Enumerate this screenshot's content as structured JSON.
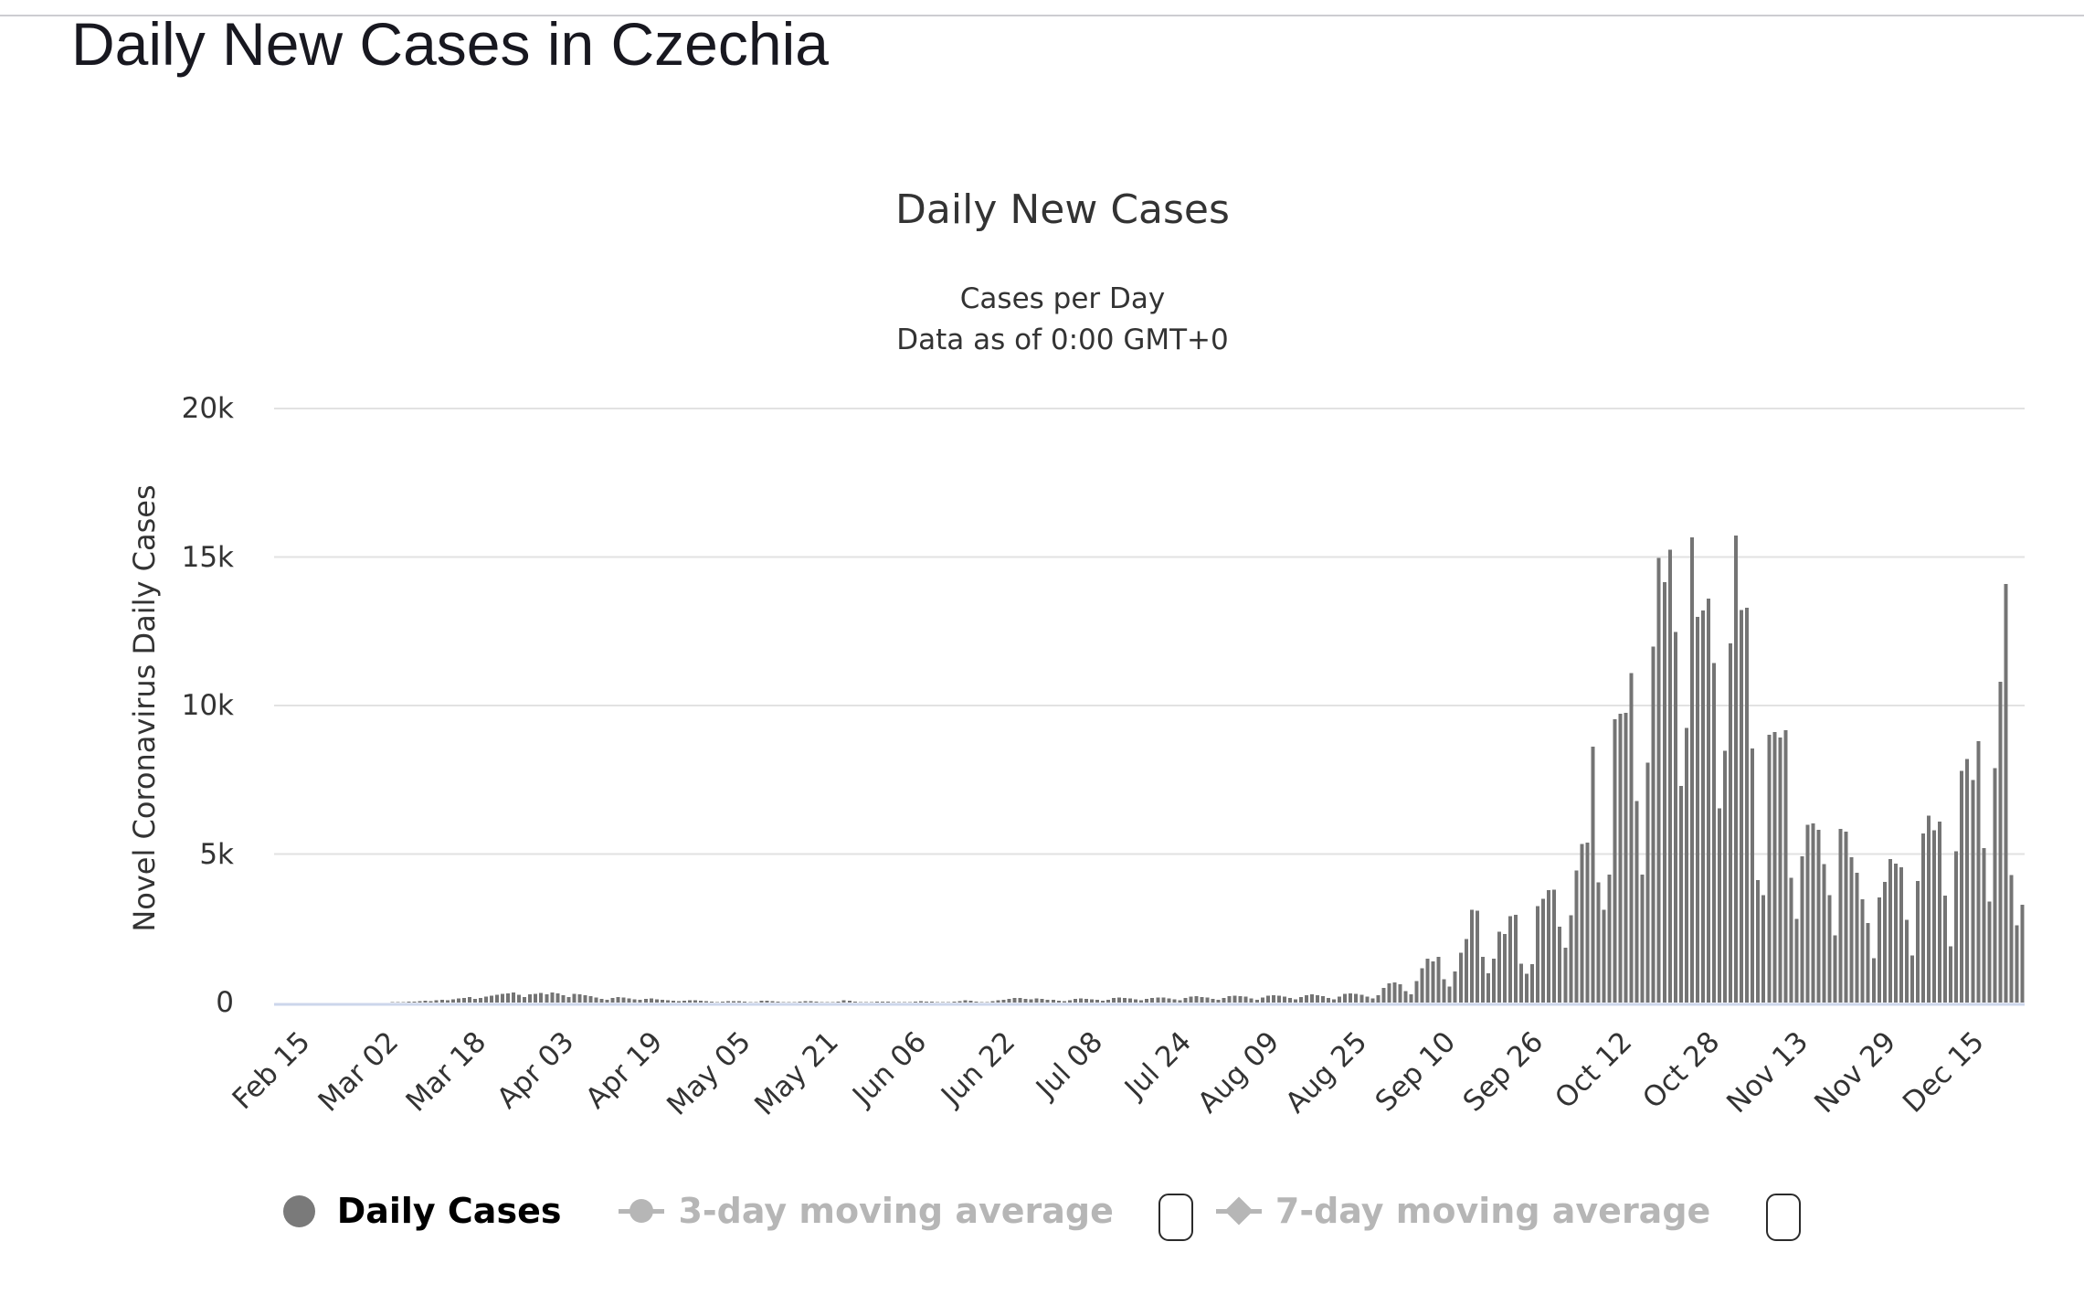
{
  "page": {
    "title": "Daily New Cases in Czechia"
  },
  "chart": {
    "title": "Daily New Cases",
    "subtitle_line1": "Cases per Day",
    "subtitle_line2": "Data as of 0:00 GMT+0",
    "y_axis_title": "Novel Coronavirus Daily Cases",
    "legend": {
      "daily_cases_label": "Daily Cases",
      "ma3_label": "3-day moving average",
      "ma7_label": "7-day moving average"
    },
    "colors": {
      "bar": "#747474",
      "gridline": "#e2e2e2",
      "axis_line": "#ccd6eb",
      "text": "#333333",
      "legend_active_text": "#000000",
      "legend_disabled": "#b6b6b6",
      "legend_daily_marker": "#7a7a7a"
    }
  },
  "chart_data": {
    "type": "bar",
    "title": "Daily New Cases",
    "subtitle": "Cases per Day — Data as of 0:00 GMT+0",
    "ylabel": "Novel Coronavirus Daily Cases",
    "xlabel": "",
    "ylim": [
      0,
      20000
    ],
    "grid": "horizontal",
    "legend_position": "bottom",
    "series_name": "Daily Cases",
    "hidden_series": [
      "3-day moving average",
      "7-day moving average"
    ],
    "x_start_label": "Feb 15",
    "x_step": "1 day",
    "y_ticks": [
      {
        "label": "20k",
        "value": 20000
      },
      {
        "label": "15k",
        "value": 15000
      },
      {
        "label": "10k",
        "value": 10000
      },
      {
        "label": "5k",
        "value": 5000
      },
      {
        "label": "0",
        "value": 0
      }
    ],
    "x_ticks": [
      {
        "label": "Feb 15",
        "day": 0
      },
      {
        "label": "Mar 02",
        "day": 16
      },
      {
        "label": "Mar 18",
        "day": 32
      },
      {
        "label": "Apr 03",
        "day": 48
      },
      {
        "label": "Apr 19",
        "day": 64
      },
      {
        "label": "May 05",
        "day": 80
      },
      {
        "label": "May 21",
        "day": 96
      },
      {
        "label": "Jun 06",
        "day": 112
      },
      {
        "label": "Jun 22",
        "day": 128
      },
      {
        "label": "Jul 08",
        "day": 144
      },
      {
        "label": "Jul 24",
        "day": 160
      },
      {
        "label": "Aug 09",
        "day": 176
      },
      {
        "label": "Aug 25",
        "day": 192
      },
      {
        "label": "Sep 10",
        "day": 208
      },
      {
        "label": "Sep 26",
        "day": 224
      },
      {
        "label": "Oct 12",
        "day": 240
      },
      {
        "label": "Oct 28",
        "day": 256
      },
      {
        "label": "Nov 13",
        "day": 272
      },
      {
        "label": "Nov 29",
        "day": 288
      },
      {
        "label": "Dec 15",
        "day": 304
      }
    ],
    "values": [
      0,
      0,
      0,
      0,
      0,
      0,
      0,
      0,
      0,
      0,
      0,
      0,
      0,
      0,
      0,
      3,
      0,
      2,
      5,
      8,
      12,
      18,
      26,
      33,
      40,
      62,
      52,
      70,
      95,
      80,
      110,
      135,
      160,
      185,
      120,
      150,
      204,
      235,
      260,
      290,
      310,
      340,
      255,
      180,
      270,
      300,
      320,
      280,
      340,
      310,
      240,
      190,
      295,
      270,
      250,
      215,
      170,
      130,
      95,
      160,
      180,
      162,
      140,
      105,
      85,
      130,
      135,
      115,
      98,
      78,
      55,
      42,
      68,
      80,
      72,
      60,
      45,
      28,
      20,
      38,
      52,
      46,
      40,
      30,
      18,
      12,
      68,
      55,
      42,
      30,
      22,
      15,
      10,
      35,
      48,
      40,
      28,
      18,
      12,
      8,
      25,
      75,
      60,
      35,
      22,
      15,
      18,
      28,
      38,
      30,
      22,
      15,
      10,
      20,
      35,
      45,
      38,
      28,
      20,
      14,
      10,
      25,
      40,
      70,
      55,
      35,
      22,
      18,
      48,
      75,
      95,
      120,
      150,
      160,
      130,
      105,
      140,
      120,
      100,
      85,
      62,
      48,
      80,
      125,
      140,
      130,
      115,
      90,
      65,
      100,
      150,
      165,
      155,
      140,
      105,
      72,
      130,
      160,
      175,
      165,
      145,
      108,
      78,
      150,
      200,
      215,
      190,
      165,
      125,
      88,
      155,
      215,
      235,
      220,
      195,
      145,
      98,
      175,
      230,
      245,
      225,
      205,
      155,
      108,
      185,
      250,
      270,
      245,
      215,
      158,
      112,
      205,
      285,
      315,
      295,
      265,
      195,
      132,
      250,
      500,
      650,
      680,
      620,
      380,
      270,
      725,
      1160,
      1480,
      1380,
      1540,
      780,
      540,
      1040,
      1670,
      2140,
      3130,
      3100,
      1540,
      990,
      1470,
      2390,
      2310,
      2910,
      2950,
      1305,
      970,
      1290,
      3250,
      3490,
      3790,
      3800,
      2555,
      1845,
      2935,
      4450,
      5340,
      5390,
      8620,
      4040,
      3120,
      4310,
      9540,
      9720,
      9750,
      11100,
      6790,
      4310,
      8070,
      11980,
      14970,
      14150,
      15250,
      12470,
      7300,
      9250,
      15660,
      12980,
      13200,
      13600,
      11430,
      6540,
      8480,
      12090,
      15730,
      13220,
      13290,
      8550,
      4120,
      3610,
      9020,
      9110,
      8930,
      9170,
      4200,
      2810,
      4930,
      5980,
      6030,
      5810,
      4660,
      3610,
      2260,
      5850,
      5750,
      4900,
      4370,
      3470,
      2670,
      1500,
      3540,
      4060,
      4830,
      4670,
      4550,
      2790,
      1580,
      4100,
      5700,
      6300,
      5800,
      6100,
      3600,
      1900,
      5100,
      7800,
      8200,
      7500,
      8800,
      5200,
      3400,
      7900,
      10800,
      14100,
      4300,
      2600,
      3300
    ]
  }
}
